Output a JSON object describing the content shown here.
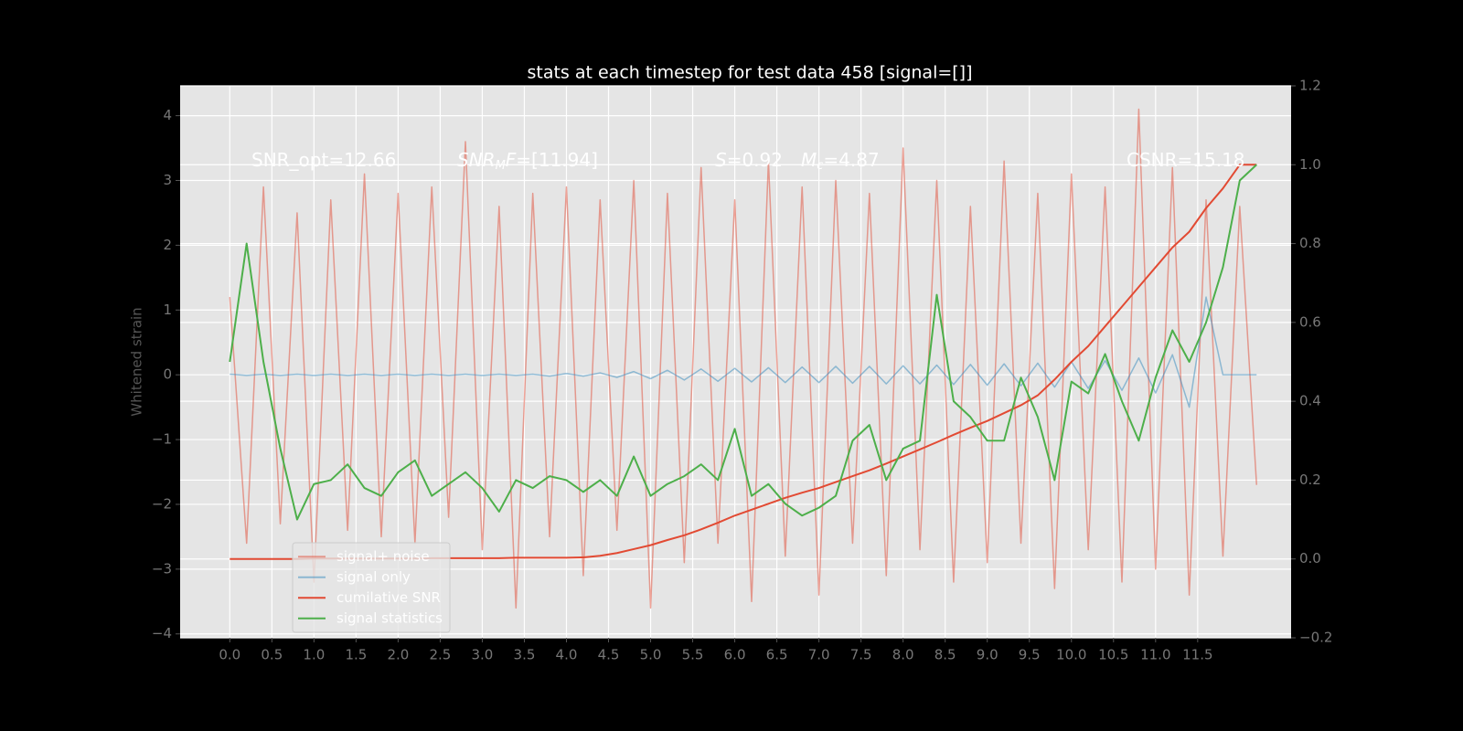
{
  "chart_data": {
    "type": "line",
    "title": "stats at each timestep for test data 458 [signal=[]]",
    "ylabel": "Whitened strain",
    "x": [
      0,
      0.2,
      0.4,
      0.6,
      0.8,
      1,
      1.2,
      1.4,
      1.6,
      1.8,
      2,
      2.2,
      2.4,
      2.6,
      2.8,
      3,
      3.2,
      3.4,
      3.6,
      3.8,
      4,
      4.2,
      4.4,
      4.6,
      4.8,
      5,
      5.2,
      5.4,
      5.6,
      5.8,
      6,
      6.2,
      6.4,
      6.6,
      6.8,
      7,
      7.2,
      7.4,
      7.6,
      7.8,
      8,
      8.2,
      8.4,
      8.6,
      8.8,
      9,
      9.2,
      9.4,
      9.6,
      9.8,
      10,
      10.2,
      10.4,
      10.6,
      10.8,
      11,
      11.2,
      11.4,
      11.6,
      11.8,
      12,
      12.2
    ],
    "series": [
      {
        "name": "signal+ noise",
        "color": "#e24a33",
        "alpha": 0.5,
        "values": [
          1.2,
          -2.6,
          2.9,
          -2.3,
          2.5,
          -3.2,
          2.7,
          -2.4,
          3.1,
          -2.5,
          2.8,
          -2.6,
          2.9,
          -2.2,
          3.6,
          -2.7,
          2.6,
          -3.6,
          2.8,
          -2.5,
          2.9,
          -3.1,
          2.7,
          -2.4,
          3.0,
          -3.6,
          2.8,
          -2.9,
          3.2,
          -2.6,
          2.7,
          -3.5,
          3.3,
          -2.8,
          2.9,
          -3.4,
          3.0,
          -2.6,
          2.8,
          -3.1,
          3.5,
          -2.7,
          3.0,
          -3.2,
          2.6,
          -2.9,
          3.3,
          -2.6,
          2.8,
          -3.3,
          3.1,
          -2.7,
          2.9,
          -3.2,
          4.1,
          -3.0,
          3.2,
          -3.4,
          2.7,
          -2.8,
          2.6,
          -1.7
        ]
      },
      {
        "name": "signal only",
        "color": "#348abd",
        "alpha": 0.5,
        "values": [
          0.01,
          -0.01,
          0.01,
          -0.01,
          0.01,
          -0.01,
          0.01,
          -0.01,
          0.01,
          -0.01,
          0.01,
          -0.01,
          0.01,
          -0.01,
          0.01,
          -0.01,
          0.01,
          -0.01,
          0.01,
          -0.02,
          0.02,
          -0.02,
          0.03,
          -0.04,
          0.05,
          -0.06,
          0.07,
          -0.08,
          0.09,
          -0.1,
          0.1,
          -0.11,
          0.11,
          -0.12,
          0.12,
          -0.12,
          0.13,
          -0.13,
          0.13,
          -0.14,
          0.14,
          -0.14,
          0.15,
          -0.15,
          0.16,
          -0.16,
          0.17,
          -0.17,
          0.18,
          -0.19,
          0.2,
          -0.21,
          0.22,
          -0.24,
          0.26,
          -0.28,
          0.31,
          -0.5,
          1.2,
          0,
          0,
          0
        ]
      },
      {
        "name": "cumilative SNR",
        "color": "#e24a33",
        "alpha": 1,
        "axis": "y2",
        "values": [
          0,
          0,
          0,
          0,
          0,
          0.001,
          0.001,
          0.001,
          0.001,
          0.001,
          0.001,
          0.001,
          0.002,
          0.002,
          0.002,
          0.002,
          0.002,
          0.003,
          0.003,
          0.003,
          0.003,
          0.004,
          0.008,
          0.015,
          0.025,
          0.035,
          0.048,
          0.06,
          0.075,
          0.092,
          0.11,
          0.125,
          0.14,
          0.155,
          0.168,
          0.18,
          0.195,
          0.21,
          0.225,
          0.242,
          0.26,
          0.278,
          0.296,
          0.315,
          0.333,
          0.35,
          0.37,
          0.39,
          0.415,
          0.455,
          0.5,
          0.54,
          0.59,
          0.64,
          0.69,
          0.74,
          0.79,
          0.83,
          0.89,
          0.94,
          1.0,
          1.0
        ]
      },
      {
        "name": "signal statistics",
        "color": "#4daf4a",
        "alpha": 1,
        "axis": "y2",
        "values": [
          0.5,
          0.8,
          0.5,
          0.28,
          0.1,
          0.19,
          0.2,
          0.24,
          0.18,
          0.16,
          0.22,
          0.25,
          0.16,
          0.19,
          0.22,
          0.18,
          0.12,
          0.2,
          0.18,
          0.21,
          0.2,
          0.17,
          0.2,
          0.16,
          0.26,
          0.16,
          0.19,
          0.21,
          0.24,
          0.2,
          0.33,
          0.16,
          0.19,
          0.14,
          0.11,
          0.13,
          0.16,
          0.3,
          0.34,
          0.2,
          0.28,
          0.3,
          0.67,
          0.4,
          0.36,
          0.3,
          0.3,
          0.46,
          0.36,
          0.2,
          0.45,
          0.42,
          0.52,
          0.4,
          0.3,
          0.46,
          0.58,
          0.5,
          0.6,
          0.74,
          0.96,
          1.0
        ]
      }
    ],
    "xlim": [
      -0.59,
      12.61
    ],
    "xticks": [
      {
        "value": 0,
        "label": "0.0"
      },
      0.5,
      {
        "value": 1,
        "label": "1.0"
      },
      1.5,
      {
        "value": 2,
        "label": "2.0"
      },
      2.5,
      {
        "value": 3,
        "label": "3.0"
      },
      3.5,
      {
        "value": 4,
        "label": "4.0"
      },
      4.5,
      {
        "value": 5,
        "label": "5.0"
      },
      5.5,
      {
        "value": 6,
        "label": "6.0"
      },
      6.5,
      {
        "value": 7,
        "label": "7.0"
      },
      7.5,
      {
        "value": 8,
        "label": "8.0"
      },
      8.5,
      {
        "value": 9,
        "label": "9.0"
      },
      9.5,
      {
        "value": 10,
        "label": "10.0"
      },
      10.5,
      {
        "value": 11,
        "label": "11.0"
      },
      11.5
    ],
    "ylim": [
      -4.06,
      4.46
    ],
    "yticks": [
      {
        "value": -4,
        "label": "−4"
      },
      {
        "value": -3,
        "label": "−3"
      },
      {
        "value": -2,
        "label": "−2"
      },
      {
        "value": -1,
        "label": "−1"
      },
      0,
      1,
      2,
      3,
      4
    ],
    "y2lim": [
      -0.2,
      1.2
    ],
    "y2ticks": [
      {
        "value": -0.2,
        "label": "−0.2"
      },
      {
        "value": 0,
        "label": "0.0"
      },
      0.2,
      0.4,
      0.6,
      0.8,
      {
        "value": 1,
        "label": "1.0"
      },
      1.2
    ],
    "grid": true,
    "legend": "lower left",
    "annotations": [
      [
        {
          "text": "SNR_opt=12.66"
        }
      ],
      [
        {
          "text": "SNR",
          "italic": true
        },
        {
          "text": "M",
          "italic": true,
          "sub": true
        },
        {
          "text": "F",
          "italic": true
        },
        {
          "text": "=[11.94]"
        }
      ],
      [
        {
          "text": "S",
          "italic": true
        },
        {
          "text": "=0.92"
        }
      ],
      [
        {
          "text": "M",
          "italic": true
        },
        {
          "text": "c",
          "italic": true,
          "sub": true
        },
        {
          "text": "=4.87"
        }
      ],
      [
        {
          "text": "CSNR=15.18"
        }
      ]
    ]
  }
}
